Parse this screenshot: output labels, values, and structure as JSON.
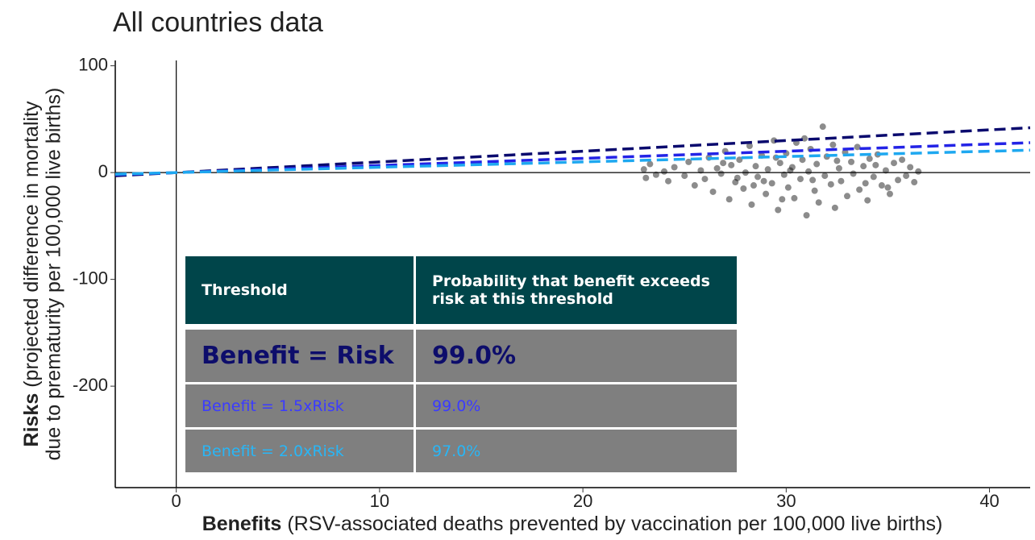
{
  "chart_data": {
    "type": "scatter",
    "title": "All countries data",
    "xlabel_bold": "Benefits",
    "xlabel": "(RSV-associated deaths prevented by vaccination per 100,000 live births)",
    "ylabel_bold": "Risks",
    "ylabel_lines": [
      "(projected difference in mortality",
      "due to prematurity per 100,000 live births)"
    ],
    "xlim": [
      -3,
      42
    ],
    "ylim": [
      -295,
      105
    ],
    "xticks": [
      0,
      10,
      20,
      30,
      40
    ],
    "yticks": [
      100,
      0,
      -100,
      -200
    ],
    "points": {
      "color": "#000000",
      "x": [
        23.0,
        23.1,
        23.3,
        23.6,
        24.0,
        24.2,
        24.5,
        25.0,
        25.2,
        25.5,
        25.8,
        26.0,
        26.2,
        26.4,
        26.6,
        26.8,
        27.0,
        27.2,
        27.3,
        27.5,
        27.7,
        27.9,
        28.0,
        28.2,
        28.3,
        28.5,
        28.6,
        28.8,
        29.0,
        29.1,
        29.3,
        29.4,
        29.6,
        29.7,
        29.9,
        30.0,
        30.1,
        30.3,
        30.4,
        30.5,
        30.7,
        30.8,
        31.0,
        31.1,
        31.2,
        31.4,
        31.5,
        31.6,
        31.8,
        31.9,
        32.0,
        32.2,
        32.3,
        32.4,
        32.6,
        32.7,
        32.9,
        33.0,
        33.2,
        33.3,
        33.5,
        33.6,
        33.8,
        34.0,
        34.1,
        34.3,
        34.5,
        34.7,
        34.9,
        35.1,
        35.3,
        35.5,
        35.7,
        35.9,
        36.1,
        36.3,
        36.5,
        28.4,
        29.8,
        30.9,
        27.6,
        26.9,
        33.9,
        32.5,
        31.3,
        30.2,
        29.5,
        28.9,
        34.4,
        35.0
      ],
      "y": [
        3,
        -5,
        8,
        -2,
        1,
        -8,
        5,
        -3,
        10,
        -12,
        2,
        -6,
        14,
        -18,
        4,
        -1,
        20,
        -25,
        7,
        -9,
        12,
        -15,
        0,
        25,
        -30,
        6,
        -4,
        16,
        -20,
        3,
        -10,
        30,
        -35,
        9,
        -2,
        18,
        -14,
        5,
        -24,
        28,
        -6,
        12,
        -40,
        1,
        22,
        -17,
        8,
        -28,
        43,
        -3,
        15,
        -11,
        26,
        -33,
        4,
        -8,
        19,
        -22,
        10,
        -1,
        24,
        -16,
        6,
        -26,
        13,
        -4,
        17,
        -12,
        2,
        -20,
        9,
        -7,
        12,
        -3,
        5,
        -9,
        1,
        -12,
        -25,
        32,
        -5,
        9,
        -10,
        11,
        -7,
        2,
        14,
        -8,
        7,
        -14
      ]
    },
    "lines_x": [
      -3,
      42
    ],
    "lines": [
      {
        "color": "#0a0a6e",
        "values": [
          -3,
          42
        ]
      },
      {
        "color": "#2323e6",
        "values": [
          -2,
          28
        ]
      },
      {
        "color": "#1ea8f0",
        "values": [
          -1.5,
          21
        ]
      }
    ],
    "table": {
      "header": [
        "Threshold",
        "Probability that benefit exceeds risk at this threshold"
      ],
      "header_color": "#00454a",
      "row_color": "#7f7f7f",
      "rows": [
        {
          "color": "#0d0d6b",
          "cells": [
            "Benefit = Risk",
            "99.0%"
          ]
        },
        {
          "color": "#3b3bff",
          "cells": [
            "Benefit = 1.5xRisk",
            "99.0%"
          ]
        },
        {
          "color": "#29b6f6",
          "cells": [
            "Benefit = 2.0xRisk",
            "97.0%"
          ]
        }
      ]
    }
  }
}
